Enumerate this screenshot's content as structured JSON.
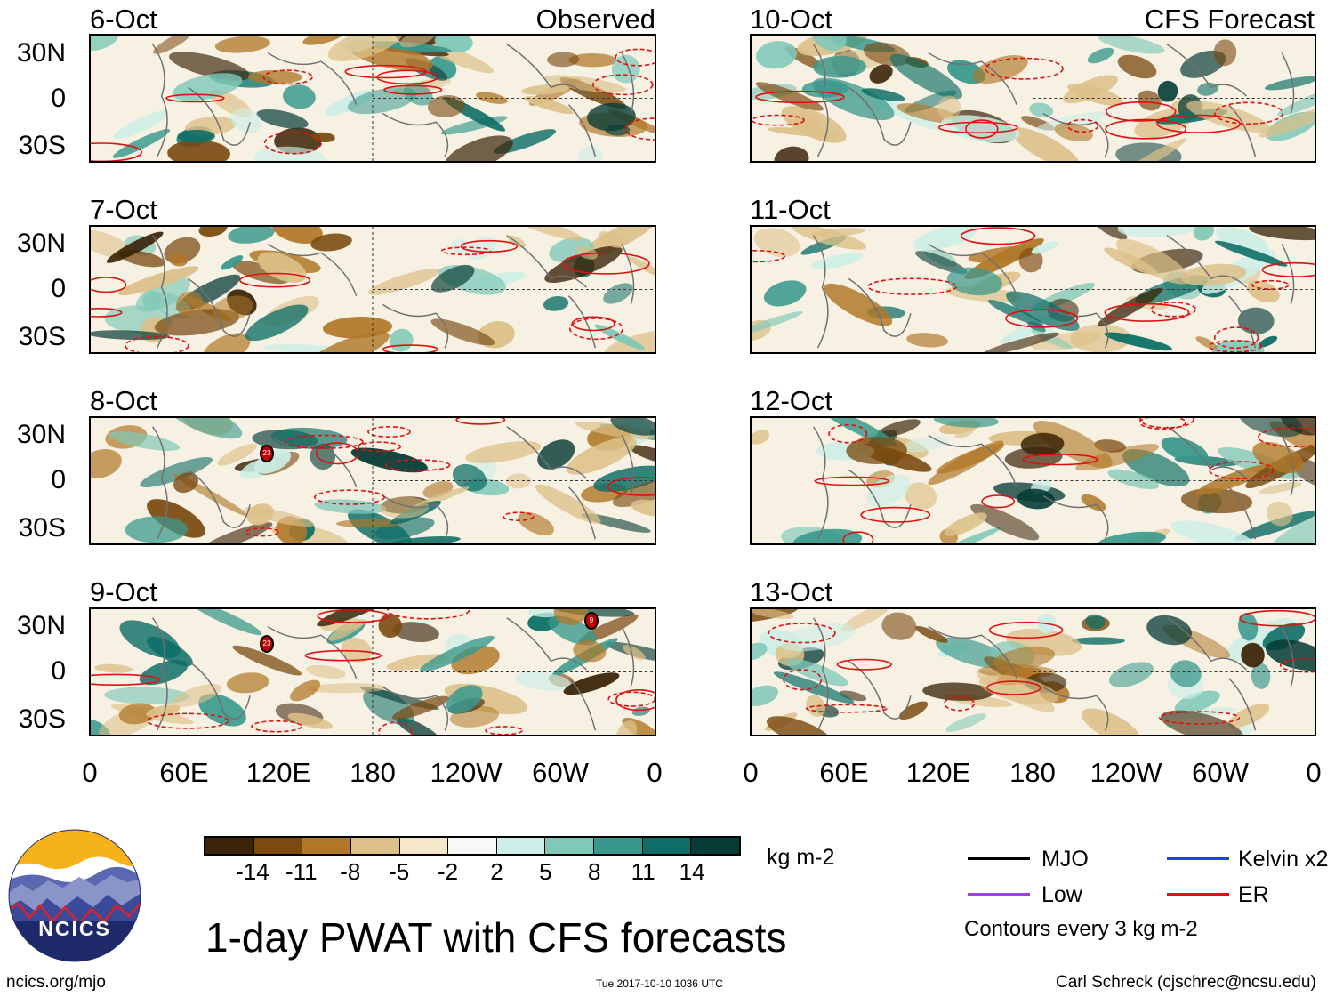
{
  "headers": {
    "left": "Observed",
    "right": "CFS Forecast"
  },
  "observed_dates": [
    "6-Oct",
    "7-Oct",
    "8-Oct",
    "9-Oct"
  ],
  "forecast_dates": [
    "10-Oct",
    "11-Oct",
    "12-Oct",
    "13-Oct"
  ],
  "lat_labels": [
    "30N",
    "0",
    "30S"
  ],
  "lon_labels": [
    "0",
    "60E",
    "120E",
    "180",
    "120W",
    "60W",
    "0"
  ],
  "storm_markers": [
    {
      "panel": "8-Oct",
      "label": "23"
    },
    {
      "panel": "9-Oct",
      "label": "23"
    },
    {
      "panel": "9-Oct",
      "label": "9"
    }
  ],
  "colorbar": {
    "ticks": [
      "-14",
      "-11",
      "-8",
      "-5",
      "-2",
      "2",
      "5",
      "8",
      "11",
      "14"
    ],
    "unit": "kg m-2",
    "colors": [
      "#3b2408",
      "#7a4a10",
      "#b07828",
      "#dcc088",
      "#f5e8c8",
      "#f8f8f8",
      "#cceee6",
      "#80c8b8",
      "#38988c",
      "#0c6e66",
      "#063c36"
    ]
  },
  "legend": {
    "items": [
      {
        "label": "MJO",
        "color": "#000000"
      },
      {
        "label": "Kelvin x2",
        "color": "#2040e0"
      },
      {
        "label": "Low",
        "color": "#a040e0"
      },
      {
        "label": "ER",
        "color": "#e01010"
      }
    ],
    "note": "Contours every 3 kg m-2"
  },
  "logo": {
    "text": "NCICS"
  },
  "title": "1-day PWAT with CFS forecasts",
  "footer": {
    "left": "ncics.org/mjo",
    "center": "Tue 2017-10-10 1036 UTC",
    "right": "Carl Schreck (cjschrec@ncsu.edu)"
  }
}
